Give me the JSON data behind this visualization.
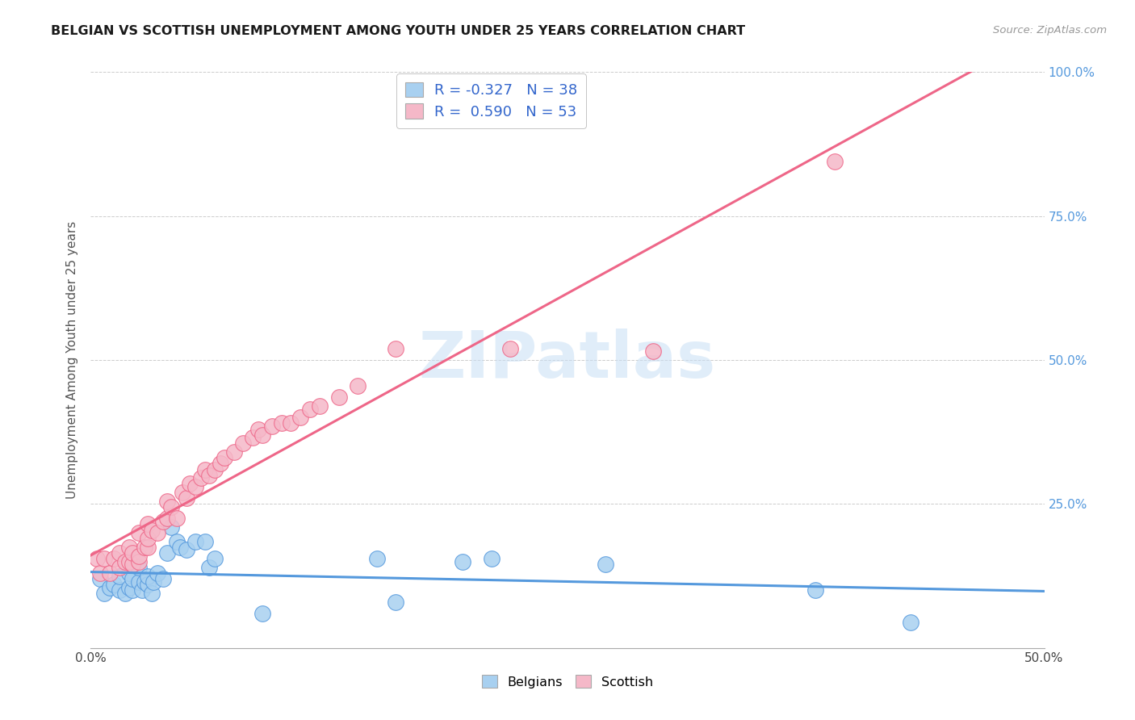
{
  "title": "BELGIAN VS SCOTTISH UNEMPLOYMENT AMONG YOUTH UNDER 25 YEARS CORRELATION CHART",
  "source": "Source: ZipAtlas.com",
  "ylabel": "Unemployment Among Youth under 25 years",
  "xlim": [
    0.0,
    0.5
  ],
  "ylim": [
    0.0,
    1.0
  ],
  "xticks": [
    0.0,
    0.1,
    0.2,
    0.3,
    0.4,
    0.5
  ],
  "xticklabels": [
    "0.0%",
    "",
    "",
    "",
    "",
    "50.0%"
  ],
  "yticks": [
    0.0,
    0.25,
    0.5,
    0.75,
    1.0
  ],
  "right_yticklabels": [
    "",
    "25.0%",
    "50.0%",
    "75.0%",
    "100.0%"
  ],
  "legend_blue_R": "-0.327",
  "legend_blue_N": "38",
  "legend_pink_R": "0.590",
  "legend_pink_N": "53",
  "blue_color": "#A8D0F0",
  "pink_color": "#F5B8C8",
  "blue_line_color": "#5599DD",
  "pink_line_color": "#EE6688",
  "watermark_text": "ZIPatlas",
  "belgians_x": [
    0.005,
    0.007,
    0.01,
    0.012,
    0.015,
    0.015,
    0.018,
    0.02,
    0.02,
    0.022,
    0.022,
    0.025,
    0.025,
    0.027,
    0.028,
    0.03,
    0.03,
    0.032,
    0.033,
    0.035,
    0.038,
    0.04,
    0.042,
    0.045,
    0.047,
    0.05,
    0.055,
    0.06,
    0.062,
    0.065,
    0.09,
    0.15,
    0.16,
    0.195,
    0.21,
    0.27,
    0.38,
    0.43
  ],
  "belgians_y": [
    0.12,
    0.095,
    0.105,
    0.11,
    0.1,
    0.125,
    0.095,
    0.105,
    0.13,
    0.1,
    0.12,
    0.115,
    0.14,
    0.1,
    0.115,
    0.11,
    0.125,
    0.095,
    0.115,
    0.13,
    0.12,
    0.165,
    0.21,
    0.185,
    0.175,
    0.17,
    0.185,
    0.185,
    0.14,
    0.155,
    0.06,
    0.155,
    0.08,
    0.15,
    0.155,
    0.145,
    0.1,
    0.045
  ],
  "scottish_x": [
    0.003,
    0.005,
    0.007,
    0.01,
    0.012,
    0.015,
    0.015,
    0.018,
    0.02,
    0.02,
    0.022,
    0.022,
    0.025,
    0.025,
    0.025,
    0.028,
    0.03,
    0.03,
    0.03,
    0.032,
    0.035,
    0.038,
    0.04,
    0.04,
    0.042,
    0.045,
    0.048,
    0.05,
    0.052,
    0.055,
    0.058,
    0.06,
    0.062,
    0.065,
    0.068,
    0.07,
    0.075,
    0.08,
    0.085,
    0.088,
    0.09,
    0.095,
    0.1,
    0.105,
    0.11,
    0.115,
    0.12,
    0.13,
    0.14,
    0.16,
    0.22,
    0.295,
    0.39
  ],
  "scottish_y": [
    0.155,
    0.13,
    0.155,
    0.13,
    0.155,
    0.14,
    0.165,
    0.15,
    0.15,
    0.175,
    0.145,
    0.165,
    0.15,
    0.16,
    0.2,
    0.175,
    0.175,
    0.19,
    0.215,
    0.205,
    0.2,
    0.22,
    0.225,
    0.255,
    0.245,
    0.225,
    0.27,
    0.26,
    0.285,
    0.28,
    0.295,
    0.31,
    0.3,
    0.31,
    0.32,
    0.33,
    0.34,
    0.355,
    0.365,
    0.38,
    0.37,
    0.385,
    0.39,
    0.39,
    0.4,
    0.415,
    0.42,
    0.435,
    0.455,
    0.52,
    0.52,
    0.515,
    0.845
  ]
}
